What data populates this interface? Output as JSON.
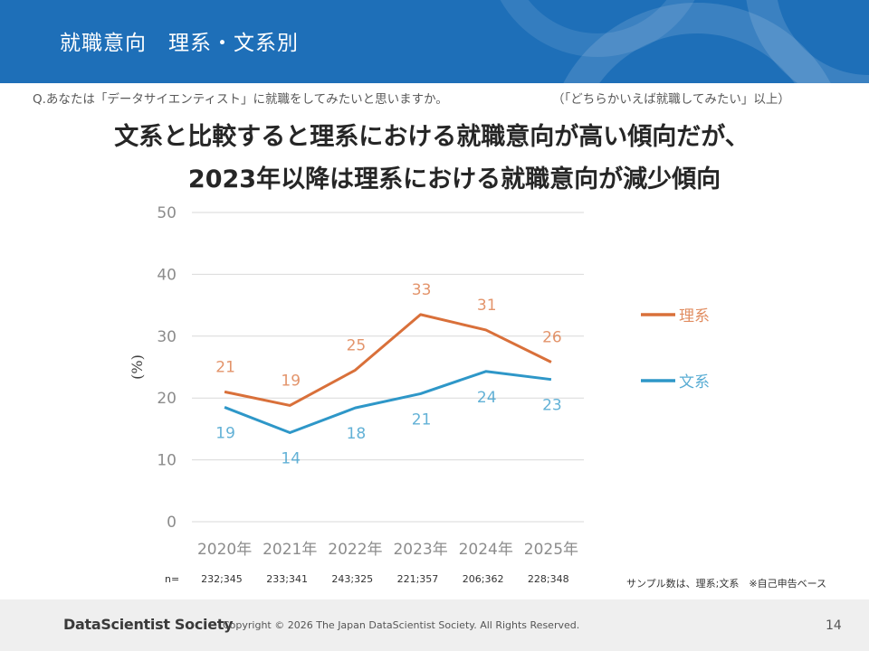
{
  "slide": {
    "title": "就職意向　理系・文系別",
    "question": "Q.あなたは「データサイエンティスト」に就職をしてみたいと思いますか。",
    "question_note": "（「どちらかいえば就職してみたい」以上）",
    "headline_1": "文系と比較すると理系における就職意向が高い傾向だが、",
    "headline_2": "2023年以降は理系における就職意向が減少傾向",
    "n_label": "n=",
    "sample_note": "サンプル数は、理系;文系　※自己申告ベース",
    "brand": "DataScientist Society",
    "copyright": "Copyright © 2026  The Japan DataScientist Society. All Rights Reserved.",
    "page_number": "14"
  },
  "chart_data": {
    "type": "line",
    "categories": [
      "2020年",
      "2021年",
      "2022年",
      "2023年",
      "2024年",
      "2025年"
    ],
    "series": [
      {
        "name": "理系",
        "color": "#d9703a",
        "values": [
          21,
          19,
          25,
          33,
          31,
          26
        ],
        "plot": [
          21,
          18.8,
          24.5,
          33.5,
          31,
          25.8
        ]
      },
      {
        "name": "文系",
        "color": "#2e97c8",
        "values": [
          19,
          14,
          18,
          21,
          24,
          23
        ],
        "plot": [
          18.5,
          14.4,
          18.4,
          20.7,
          24.3,
          23
        ]
      }
    ],
    "sample_sizes": [
      "232;345",
      "233;341",
      "243;325",
      "221;357",
      "206;362",
      "228;348"
    ],
    "ylabel": "(%)",
    "ylim": [
      0,
      50
    ],
    "yticks": [
      0,
      10,
      20,
      30,
      40,
      50
    ],
    "grid": true,
    "legend": "right"
  }
}
